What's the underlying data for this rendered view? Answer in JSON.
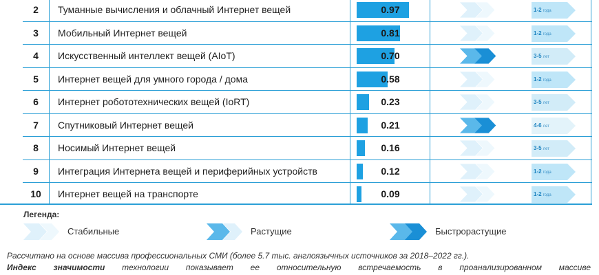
{
  "table": {
    "rows": [
      {
        "rank": "2",
        "name": "Туманные вычисления и облачный Интернет вещей",
        "value": "0.97",
        "index": 0.97,
        "trend": "stable",
        "term": "1-2",
        "unit": "года",
        "term_color": "#bfe6f8"
      },
      {
        "rank": "3",
        "name": "Мобильный Интернет вещей",
        "value": "0.81",
        "index": 0.81,
        "trend": "stable",
        "term": "1-2",
        "unit": "года",
        "term_color": "#bfe6f8"
      },
      {
        "rank": "4",
        "name": "Искусственный интеллект вещей (AIoT)",
        "value": "0.70",
        "index": 0.7,
        "trend": "fast",
        "term": "3-5",
        "unit": "лет",
        "term_color": "#d2ecf8"
      },
      {
        "rank": "5",
        "name": "Интернет вещей для умного города / дома",
        "value": "0.58",
        "index": 0.58,
        "trend": "stable",
        "term": "1-2",
        "unit": "года",
        "term_color": "#bfe6f8"
      },
      {
        "rank": "6",
        "name": "Интернет робототехнических вещей (IoRT)",
        "value": "0.23",
        "index": 0.23,
        "trend": "stable",
        "term": "3-5",
        "unit": "лет",
        "term_color": "#d2ecf8"
      },
      {
        "rank": "7",
        "name": "Спутниковый Интернет вещей",
        "value": "0.21",
        "index": 0.21,
        "trend": "fast",
        "term": "4-6",
        "unit": "лет",
        "term_color": "#e3f3fa"
      },
      {
        "rank": "8",
        "name": "Носимый Интернет вещей",
        "value": "0.16",
        "index": 0.16,
        "trend": "stable",
        "term": "3-5",
        "unit": "лет",
        "term_color": "#d2ecf8"
      },
      {
        "rank": "9",
        "name": "Интеграция Интернета вещей и периферийных устройств",
        "value": "0.12",
        "index": 0.12,
        "trend": "stable",
        "term": "1-2",
        "unit": "года",
        "term_color": "#bfe6f8"
      },
      {
        "rank": "10",
        "name": "Интернет вещей на транспорте",
        "value": "0.09",
        "index": 0.09,
        "trend": "stable",
        "term": "1-2",
        "unit": "года",
        "term_color": "#bfe6f8"
      }
    ]
  },
  "legend": {
    "title": "Легенда:",
    "items": [
      {
        "label": "Стабильные",
        "trend": "stable"
      },
      {
        "label": "Растущие",
        "trend": "growing"
      },
      {
        "label": "Быстрорастущие",
        "trend": "fast"
      }
    ]
  },
  "notes": {
    "line1": "Рассчитано на основе массива профессиональных СМИ (более 5.7 тыс. англоязычных источников за 2018–2022 гг.).",
    "line2_bold": "Индекс значимости",
    "line2_rest": " технологии показывает ее относительную встречаемость в проанализированном массиве"
  },
  "colors": {
    "border": "#2b9fd6",
    "bar": "#1ea1e2",
    "chevron_light": "#dff1fb",
    "chevron_mid": "#5ab8ea",
    "chevron_dark": "#1a8fd6"
  }
}
